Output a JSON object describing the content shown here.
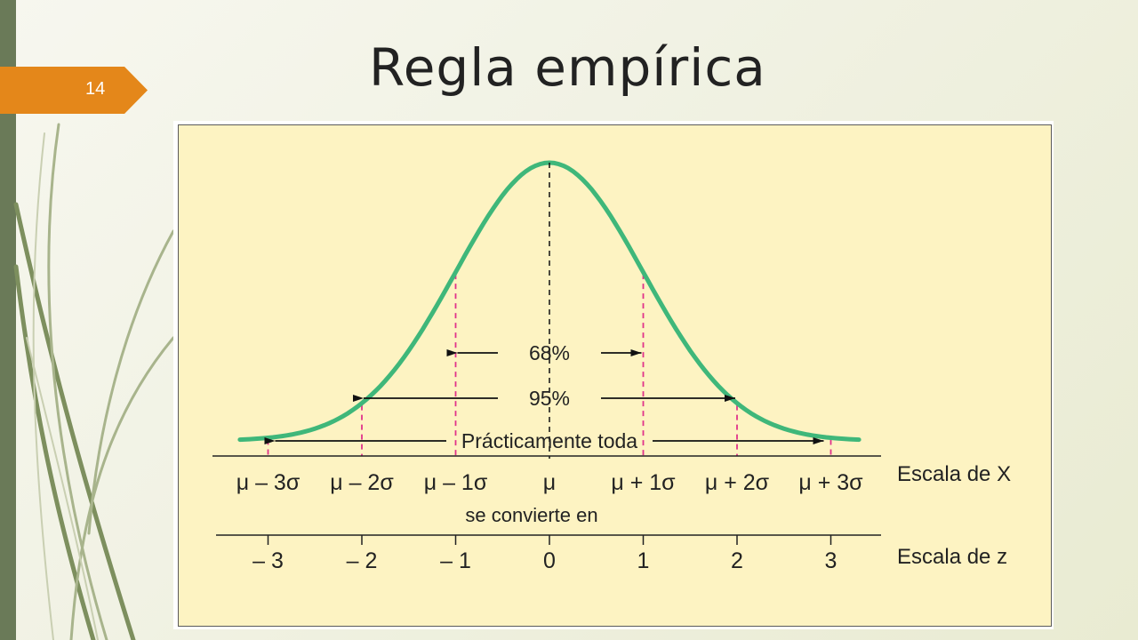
{
  "slide": {
    "number": "14",
    "title": "Regla empírica"
  },
  "colors": {
    "curve": "#3fb77a",
    "dashes": "#e0338a",
    "badge": "#e4871a",
    "figure_bg": "#fdf3c2"
  },
  "diagram": {
    "bands": [
      {
        "label": "68%",
        "k": 1
      },
      {
        "label": "95%",
        "k": 2
      },
      {
        "label": "Prácticamente toda",
        "k": 3
      }
    ],
    "x_scale_label": "Escala de X",
    "z_scale_label": "Escala de z",
    "converts_label": "se convierte en",
    "x_ticks": [
      {
        "k": -3,
        "label": "μ – 3σ"
      },
      {
        "k": -2,
        "label": "μ – 2σ"
      },
      {
        "k": -1,
        "label": "μ – 1σ"
      },
      {
        "k": 0,
        "label": "μ"
      },
      {
        "k": 1,
        "label": "μ + 1σ"
      },
      {
        "k": 2,
        "label": "μ + 2σ"
      },
      {
        "k": 3,
        "label": "μ + 3σ"
      }
    ],
    "z_ticks": [
      {
        "k": -3,
        "label": "– 3"
      },
      {
        "k": -2,
        "label": "– 2"
      },
      {
        "k": -1,
        "label": "– 1"
      },
      {
        "k": 0,
        "label": "0"
      },
      {
        "k": 1,
        "label": "1"
      },
      {
        "k": 2,
        "label": "2"
      },
      {
        "k": 3,
        "label": "3"
      }
    ]
  }
}
